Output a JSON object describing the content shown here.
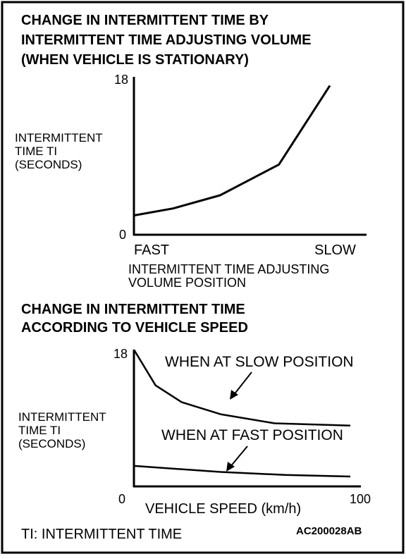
{
  "chart1": {
    "title_lines": [
      "CHANGE IN INTERMITTENT TIME BY",
      "INTERMITTENT TIME ADJUSTING VOLUME",
      "(WHEN VEHICLE IS STATIONARY)"
    ],
    "ylabel_lines": [
      "INTERMITTENT",
      "TIME TI",
      "(SECONDS)"
    ],
    "y_max_label": "18",
    "y_min_label": "0",
    "x_left_label": "FAST",
    "x_right_label": "SLOW",
    "xlabel_lines": [
      "INTERMITTENT TIME ADJUSTING",
      "VOLUME POSITION"
    ]
  },
  "chart2": {
    "title_lines": [
      "CHANGE IN INTERMITTENT TIME",
      "ACCORDING TO VEHICLE SPEED"
    ],
    "ylabel_lines": [
      "INTERMITTENT",
      "TIME TI",
      "(SECONDS)"
    ],
    "y_max_label": "18",
    "x_min_label": "0",
    "x_max_label": "100",
    "xlabel": "VEHICLE SPEED  (km/h)",
    "annotation_slow": "WHEN AT SLOW POSITION",
    "annotation_fast": "WHEN AT FAST POSITION"
  },
  "footer": {
    "legend": "TI: INTERMITTENT TIME",
    "figure_code": "AC200028AB"
  },
  "chart_data": [
    {
      "type": "line",
      "title": "CHANGE IN INTERMITTENT TIME BY INTERMITTENT TIME ADJUSTING VOLUME (WHEN VEHICLE IS STATIONARY)",
      "xlabel": "INTERMITTENT TIME ADJUSTING VOLUME POSITION",
      "ylabel": "INTERMITTENT TIME TI (SECONDS)",
      "x_tick_labels": [
        "FAST",
        "SLOW"
      ],
      "ylim": [
        0,
        18
      ],
      "x": [
        0,
        0.2,
        0.44,
        0.74,
        1.0
      ],
      "series": [
        {
          "values": [
            2.2,
            3.0,
            4.5,
            8.0,
            17.0
          ]
        }
      ]
    },
    {
      "type": "line",
      "title": "CHANGE IN INTERMITTENT TIME ACCORDING TO VEHICLE SPEED",
      "xlabel": "VEHICLE SPEED (km/h)",
      "ylabel": "INTERMITTENT TIME TI (SECONDS)",
      "xlim": [
        0,
        100
      ],
      "ylim": [
        0,
        18
      ],
      "series": [
        {
          "name": "WHEN AT SLOW POSITION",
          "x": [
            0,
            10,
            22,
            40,
            65,
            100
          ],
          "values": [
            18,
            13.3,
            11.1,
            9.5,
            8.3,
            8.0
          ]
        },
        {
          "name": "WHEN AT FAST POSITION",
          "x": [
            0,
            40,
            70,
            100
          ],
          "values": [
            2.7,
            1.9,
            1.5,
            1.3
          ]
        }
      ]
    }
  ]
}
